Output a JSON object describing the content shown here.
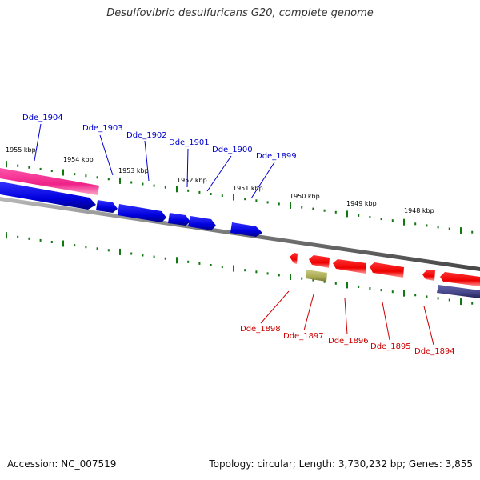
{
  "title": "Desulfovibrio desulfuricans G20, complete genome",
  "footer": {
    "accession": "Accession: NC_007519",
    "stats": "Topology: circular; Length: 3,730,232 bp; Genes: 3,855"
  },
  "colors": {
    "forward_gene": "#0000ee",
    "reverse_gene": "#ee0000",
    "pink_feature": "#ee2288",
    "purple_feature": "#444488",
    "olive_feature": "#aaaa55",
    "backbone": "#777777",
    "tick": "#117711"
  },
  "kbp_labels": [
    "1955 kbp",
    "1954 kbp",
    "1953 kbp",
    "1952 kbp",
    "1951 kbp",
    "1950 kbp",
    "1949 kbp",
    "1948 kbp"
  ],
  "genes_top": [
    "Dde_1904",
    "Dde_1903",
    "Dde_1902",
    "Dde_1901",
    "Dde_1900",
    "Dde_1899"
  ],
  "genes_bottom": [
    "Dde_1898",
    "Dde_1897",
    "Dde_1896",
    "Dde_1895",
    "Dde_1894"
  ]
}
